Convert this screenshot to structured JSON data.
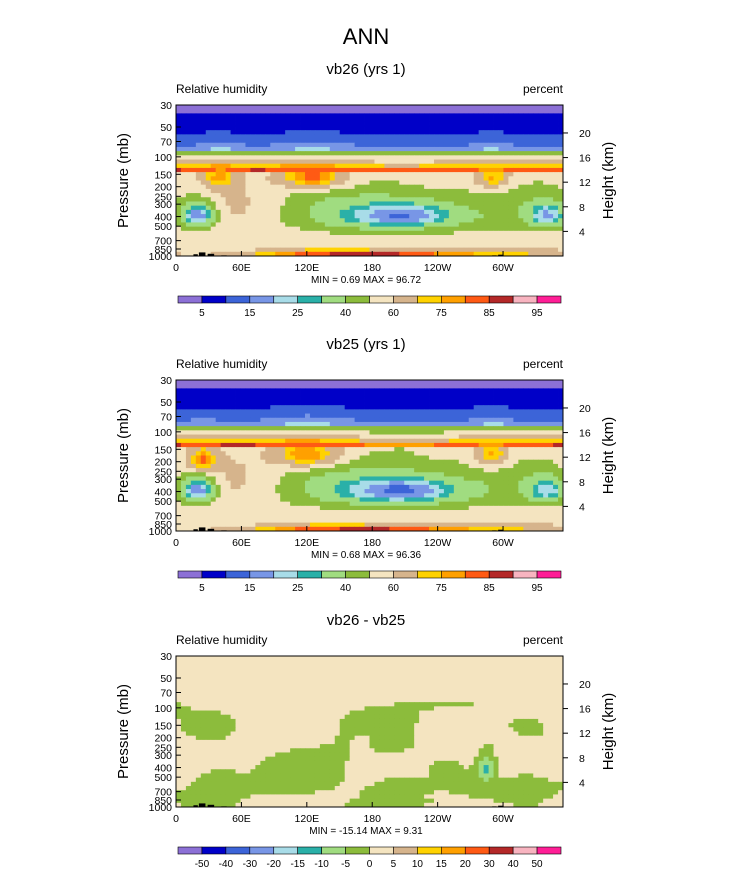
{
  "main_title": "ANN",
  "colors": {
    "rh": [
      "#8c70d6",
      "#0000c8",
      "#3c64d8",
      "#7896e6",
      "#a8dce8",
      "#2ab0a8",
      "#a0dc80",
      "#8cbc3c",
      "#f4e4c0",
      "#d6b48c",
      "#ffd200",
      "#ffa000",
      "#ff5a14",
      "#b42828",
      "#f8b4c0",
      "#ff1e96"
    ],
    "diff": [
      "#8c70d6",
      "#0000c8",
      "#3c64d8",
      "#7896e6",
      "#a8dce8",
      "#2ab0a8",
      "#a0dc80",
      "#8cbc3c",
      "#f4e4c0",
      "#d6b48c",
      "#ffd200",
      "#ffa000",
      "#ff5a14",
      "#b42828",
      "#f8b4c0",
      "#ff1e96"
    ],
    "topo": "#000000"
  },
  "chart_data": [
    {
      "type": "heatmap",
      "title": "vb26 (yrs 1)",
      "left_label": "Relative humidity",
      "right_label": "percent",
      "ylabel": "Pressure (mb)",
      "y2label": "Height (km)",
      "x_ticks": [
        "0",
        "60E",
        "120E",
        "180",
        "120W",
        "60W"
      ],
      "x_tick_lon": [
        0,
        60,
        120,
        180,
        240,
        300
      ],
      "xlim": [
        0,
        355
      ],
      "p_ticks": [
        "30",
        "50",
        "70",
        "100",
        "150",
        "200",
        "250",
        "300",
        "400",
        "500",
        "700",
        "850",
        "1000"
      ],
      "p_tick_values": [
        30,
        50,
        70,
        100,
        150,
        200,
        250,
        300,
        400,
        500,
        700,
        850,
        1000
      ],
      "plim": [
        30,
        1000
      ],
      "h_ticks": [
        "20",
        "16",
        "12",
        "8",
        "4"
      ],
      "h_tick_values": [
        20,
        16,
        12,
        8,
        4
      ],
      "min_max_text": "MIN =   0.69  MAX =  96.72",
      "levels": [
        "5",
        "10",
        "15",
        "20",
        "25",
        "30",
        "40",
        "50",
        "60",
        "70",
        "75",
        "80",
        "85",
        "90",
        "95"
      ],
      "label_levels": [
        "5",
        "15",
        "25",
        "40",
        "60",
        "75",
        "85",
        "95"
      ],
      "palette": "rh",
      "features": [
        {
          "lon": 20,
          "p": 390,
          "v": 15,
          "rx": 22,
          "rp": 160
        },
        {
          "lon": 205,
          "p": 390,
          "v": 14,
          "rx": 90,
          "rp": 200
        },
        {
          "lon": 340,
          "p": 390,
          "v": 18,
          "rx": 25,
          "rp": 160
        },
        {
          "lon": 180,
          "p": 930,
          "v": 90,
          "rx": 170,
          "rp": 90
        },
        {
          "lon": 125,
          "p": 160,
          "v": 82,
          "rx": 40,
          "rp": 60
        },
        {
          "lon": 40,
          "p": 160,
          "v": 78,
          "rx": 22,
          "rp": 60
        },
        {
          "lon": 290,
          "p": 160,
          "v": 76,
          "rx": 20,
          "rp": 60
        }
      ],
      "topo": [
        {
          "lon": 18,
          "w": 4,
          "p": 960
        },
        {
          "lon": 24,
          "w": 6,
          "p": 920
        },
        {
          "lon": 32,
          "w": 6,
          "p": 950
        },
        {
          "lon": 44,
          "w": 5,
          "p": 985
        },
        {
          "lon": 292,
          "w": 4,
          "p": 985
        },
        {
          "lon": 298,
          "w": 5,
          "p": 970
        }
      ]
    },
    {
      "type": "heatmap",
      "title": "vb25 (yrs 1)",
      "left_label": "Relative humidity",
      "right_label": "percent",
      "ylabel": "Pressure (mb)",
      "y2label": "Height (km)",
      "x_ticks": [
        "0",
        "60E",
        "120E",
        "180",
        "120W",
        "60W"
      ],
      "x_tick_lon": [
        0,
        60,
        120,
        180,
        240,
        300
      ],
      "xlim": [
        0,
        355
      ],
      "p_ticks": [
        "30",
        "50",
        "70",
        "100",
        "150",
        "200",
        "250",
        "300",
        "400",
        "500",
        "700",
        "850",
        "1000"
      ],
      "p_tick_values": [
        30,
        50,
        70,
        100,
        150,
        200,
        250,
        300,
        400,
        500,
        700,
        850,
        1000
      ],
      "plim": [
        30,
        1000
      ],
      "h_ticks": [
        "20",
        "16",
        "12",
        "8",
        "4"
      ],
      "h_tick_values": [
        20,
        16,
        12,
        8,
        4
      ],
      "min_max_text": "MIN =   0.68  MAX =  96.36",
      "levels": [
        "5",
        "10",
        "15",
        "20",
        "25",
        "30",
        "40",
        "50",
        "60",
        "70",
        "75",
        "80",
        "85",
        "90",
        "95"
      ],
      "label_levels": [
        "5",
        "15",
        "25",
        "40",
        "60",
        "75",
        "85",
        "95"
      ],
      "palette": "rh",
      "features": [
        {
          "lon": 20,
          "p": 390,
          "v": 15,
          "rx": 22,
          "rp": 160
        },
        {
          "lon": 205,
          "p": 390,
          "v": 13,
          "rx": 95,
          "rp": 210
        },
        {
          "lon": 340,
          "p": 390,
          "v": 20,
          "rx": 25,
          "rp": 150
        },
        {
          "lon": 180,
          "p": 930,
          "v": 89,
          "rx": 170,
          "rp": 90
        },
        {
          "lon": 120,
          "p": 170,
          "v": 80,
          "rx": 40,
          "rp": 70
        },
        {
          "lon": 25,
          "p": 190,
          "v": 82,
          "rx": 18,
          "rp": 70
        },
        {
          "lon": 290,
          "p": 170,
          "v": 76,
          "rx": 20,
          "rp": 70
        }
      ],
      "topo": [
        {
          "lon": 18,
          "w": 4,
          "p": 960
        },
        {
          "lon": 24,
          "w": 6,
          "p": 920
        },
        {
          "lon": 32,
          "w": 6,
          "p": 950
        },
        {
          "lon": 44,
          "w": 5,
          "p": 985
        },
        {
          "lon": 292,
          "w": 4,
          "p": 985
        },
        {
          "lon": 298,
          "w": 5,
          "p": 970
        }
      ]
    },
    {
      "type": "heatmap",
      "title": "vb26 - vb25",
      "left_label": "Relative humidity",
      "right_label": "percent",
      "ylabel": "Pressure (mb)",
      "y2label": "Height (km)",
      "x_ticks": [
        "0",
        "60E",
        "120E",
        "180",
        "120W",
        "60W"
      ],
      "x_tick_lon": [
        0,
        60,
        120,
        180,
        240,
        300
      ],
      "xlim": [
        0,
        355
      ],
      "p_ticks": [
        "30",
        "50",
        "70",
        "100",
        "150",
        "200",
        "250",
        "300",
        "400",
        "500",
        "700",
        "850",
        "1000"
      ],
      "p_tick_values": [
        30,
        50,
        70,
        100,
        150,
        200,
        250,
        300,
        400,
        500,
        700,
        850,
        1000
      ],
      "plim": [
        30,
        1000
      ],
      "h_ticks": [
        "20",
        "16",
        "12",
        "8",
        "4"
      ],
      "h_tick_values": [
        20,
        16,
        12,
        8,
        4
      ],
      "min_max_text": "MIN = -15.14  MAX =   9.31",
      "levels": [
        "-50",
        "-40",
        "-30",
        "-20",
        "-15",
        "-10",
        "-5",
        "0",
        "5",
        "10",
        "15",
        "20",
        "30",
        "40",
        "50"
      ],
      "label_levels": [
        "-50",
        "-40",
        "-30",
        "-20",
        "-15",
        "-10",
        "-5",
        "0",
        "5",
        "10",
        "15",
        "20",
        "30",
        "40",
        "50"
      ],
      "palette": "diff",
      "features": [
        {
          "lon": 285,
          "p": 420,
          "v": -12,
          "rx": 10,
          "rp": 180
        },
        {
          "lon": 120,
          "p": 500,
          "v": -4,
          "rx": 40,
          "rp": 250
        },
        {
          "lon": 40,
          "p": 600,
          "v": -4,
          "rx": 30,
          "rp": 300
        },
        {
          "lon": 320,
          "p": 650,
          "v": -3.5,
          "rx": 30,
          "rp": 250
        },
        {
          "lon": 200,
          "p": 700,
          "v": -3.5,
          "rx": 40,
          "rp": 300
        },
        {
          "lon": 170,
          "p": 230,
          "v": 2,
          "rx": 12,
          "rp": 80
        },
        {
          "lon": 240,
          "p": 780,
          "v": 2,
          "rx": 15,
          "rp": 70
        }
      ],
      "topo": [
        {
          "lon": 18,
          "w": 4,
          "p": 960
        },
        {
          "lon": 24,
          "w": 6,
          "p": 920
        },
        {
          "lon": 32,
          "w": 6,
          "p": 950
        },
        {
          "lon": 44,
          "w": 5,
          "p": 985
        },
        {
          "lon": 292,
          "w": 4,
          "p": 985
        },
        {
          "lon": 298,
          "w": 5,
          "p": 970
        }
      ]
    }
  ]
}
